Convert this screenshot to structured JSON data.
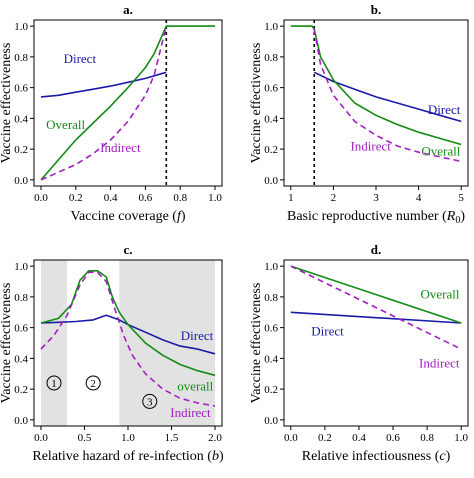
{
  "colors": {
    "direct": "#1a1aa6",
    "overall": "#138a13",
    "indirect": "#a020c0",
    "shade": "#e2e2e2",
    "axis": "#000000"
  },
  "chart_data": [
    {
      "panel": "a.",
      "type": "line",
      "xlabel": "Vaccine coverage (",
      "xlabel_var": "f",
      "xlabel_end": ")",
      "ylabel": "Vaccine effectiveness",
      "xlim": [
        0,
        1
      ],
      "ylim": [
        0,
        1
      ],
      "xticks": [
        "0.0",
        "0.2",
        "0.4",
        "0.6",
        "0.8",
        "1.0"
      ],
      "yticks": [
        "0.0",
        "0.2",
        "0.4",
        "0.6",
        "0.8",
        "1.0"
      ],
      "vline": 0.72,
      "series": [
        {
          "name": "Direct",
          "x": [
            0,
            0.1,
            0.2,
            0.3,
            0.4,
            0.5,
            0.6,
            0.72
          ],
          "y": [
            0.54,
            0.55,
            0.57,
            0.59,
            0.61,
            0.635,
            0.66,
            0.7
          ]
        },
        {
          "name": "Overall",
          "x": [
            0,
            0.1,
            0.2,
            0.3,
            0.4,
            0.5,
            0.6,
            0.65,
            0.72,
            1.0
          ],
          "y": [
            0.0,
            0.13,
            0.26,
            0.37,
            0.48,
            0.6,
            0.73,
            0.82,
            1.0,
            1.0
          ]
        },
        {
          "name": "Indirect",
          "x": [
            0,
            0.1,
            0.2,
            0.3,
            0.4,
            0.5,
            0.6,
            0.65,
            0.72
          ],
          "y": [
            0.0,
            0.05,
            0.1,
            0.17,
            0.26,
            0.38,
            0.55,
            0.68,
            1.0
          ]
        }
      ],
      "labels": [
        {
          "series": "Direct",
          "text": "Direct"
        },
        {
          "series": "Overall",
          "text": "Overall"
        },
        {
          "series": "Indirect",
          "text": "Indirect"
        }
      ]
    },
    {
      "panel": "b.",
      "type": "line",
      "xlabel": "Basic reproductive number (",
      "xlabel_var": "R",
      "xlabel_sub": "0",
      "xlabel_end": ")",
      "ylabel": "Vaccine effectiveness",
      "xlim": [
        1,
        5
      ],
      "ylim": [
        0,
        1
      ],
      "xticks": [
        "1",
        "2",
        "3",
        "4",
        "5"
      ],
      "yticks": [
        "0.0",
        "0.2",
        "0.4",
        "0.6",
        "0.8",
        "1.0"
      ],
      "vline": 1.55,
      "series": [
        {
          "name": "Direct",
          "x": [
            1.55,
            2,
            2.5,
            3,
            3.5,
            4,
            4.5,
            5
          ],
          "y": [
            0.7,
            0.64,
            0.59,
            0.54,
            0.5,
            0.46,
            0.42,
            0.38
          ]
        },
        {
          "name": "Overall",
          "x": [
            1,
            1.5,
            1.55,
            1.7,
            2,
            2.5,
            3,
            3.5,
            4,
            4.5,
            5
          ],
          "y": [
            1.0,
            1.0,
            0.98,
            0.8,
            0.65,
            0.5,
            0.42,
            0.36,
            0.31,
            0.27,
            0.23
          ]
        },
        {
          "name": "Indirect",
          "x": [
            1.55,
            1.7,
            2,
            2.5,
            3,
            3.5,
            4,
            4.5,
            5
          ],
          "y": [
            0.98,
            0.75,
            0.55,
            0.38,
            0.29,
            0.22,
            0.18,
            0.15,
            0.12
          ]
        }
      ],
      "labels": [
        {
          "series": "Direct",
          "text": "Direct"
        },
        {
          "series": "Overall",
          "text": "Overall"
        },
        {
          "series": "Indirect",
          "text": "Indirect"
        }
      ]
    },
    {
      "panel": "c.",
      "type": "line",
      "xlabel": "Relative hazard of re-infection (",
      "xlabel_var": "b",
      "xlabel_end": ")",
      "ylabel": "Vaccine effectiveness",
      "xlim": [
        0,
        2
      ],
      "ylim": [
        0,
        1
      ],
      "xticks": [
        "0.0",
        "0.5",
        "1.0",
        "1.5",
        "2.0"
      ],
      "yticks": [
        "0.0",
        "0.2",
        "0.4",
        "0.6",
        "0.8",
        "1.0"
      ],
      "shaded_regions": [
        [
          0,
          0.3
        ],
        [
          0.9,
          2.0
        ]
      ],
      "zones": [
        {
          "text": "1",
          "x": 0.15,
          "y": 0.24
        },
        {
          "text": "2",
          "x": 0.6,
          "y": 0.24
        },
        {
          "text": "3",
          "x": 1.25,
          "y": 0.12
        }
      ],
      "series": [
        {
          "name": "Direct",
          "x": [
            0,
            0.2,
            0.4,
            0.6,
            0.75,
            0.9,
            1.0,
            1.2,
            1.4,
            1.6,
            1.8,
            2.0
          ],
          "y": [
            0.63,
            0.635,
            0.64,
            0.65,
            0.68,
            0.65,
            0.62,
            0.57,
            0.52,
            0.48,
            0.46,
            0.43
          ]
        },
        {
          "name": "Overall",
          "x": [
            0,
            0.2,
            0.35,
            0.45,
            0.55,
            0.65,
            0.75,
            0.82,
            0.9,
            1.0,
            1.2,
            1.4,
            1.6,
            1.8,
            2.0
          ],
          "y": [
            0.63,
            0.66,
            0.75,
            0.91,
            0.97,
            0.97,
            0.93,
            0.8,
            0.7,
            0.62,
            0.5,
            0.42,
            0.36,
            0.32,
            0.29
          ]
        },
        {
          "name": "Indirect",
          "x": [
            0,
            0.15,
            0.3,
            0.45,
            0.55,
            0.65,
            0.75,
            0.85,
            0.95,
            1.05,
            1.2,
            1.4,
            1.6,
            1.8,
            2.0
          ],
          "y": [
            0.46,
            0.55,
            0.68,
            0.88,
            0.96,
            0.96,
            0.9,
            0.72,
            0.55,
            0.42,
            0.3,
            0.2,
            0.14,
            0.11,
            0.09
          ]
        }
      ],
      "labels": [
        {
          "series": "Direct",
          "text": "Direct"
        },
        {
          "series": "Overall",
          "text": "overall"
        },
        {
          "series": "Indirect",
          "text": "Indirect"
        }
      ]
    },
    {
      "panel": "d.",
      "type": "line",
      "xlabel": "Relative infectiousness (",
      "xlabel_var": "c",
      "xlabel_end": ")",
      "ylabel": "Vaccine effectiveness",
      "xlim": [
        0,
        1
      ],
      "ylim": [
        0,
        1
      ],
      "xticks": [
        "0.0",
        "0.2",
        "0.4",
        "0.6",
        "0.8",
        "1.0"
      ],
      "yticks": [
        "0.0",
        "0.2",
        "0.4",
        "0.6",
        "0.8",
        "1.0"
      ],
      "series": [
        {
          "name": "Direct",
          "x": [
            0,
            1
          ],
          "y": [
            0.7,
            0.63
          ]
        },
        {
          "name": "Overall",
          "x": [
            0,
            1
          ],
          "y": [
            1.0,
            0.63
          ]
        },
        {
          "name": "Indirect",
          "x": [
            0,
            1
          ],
          "y": [
            1.0,
            0.46
          ]
        }
      ],
      "labels": [
        {
          "series": "Direct",
          "text": "Direct"
        },
        {
          "series": "Overall",
          "text": "Overall"
        },
        {
          "series": "Indirect",
          "text": "Indirect"
        }
      ]
    }
  ]
}
